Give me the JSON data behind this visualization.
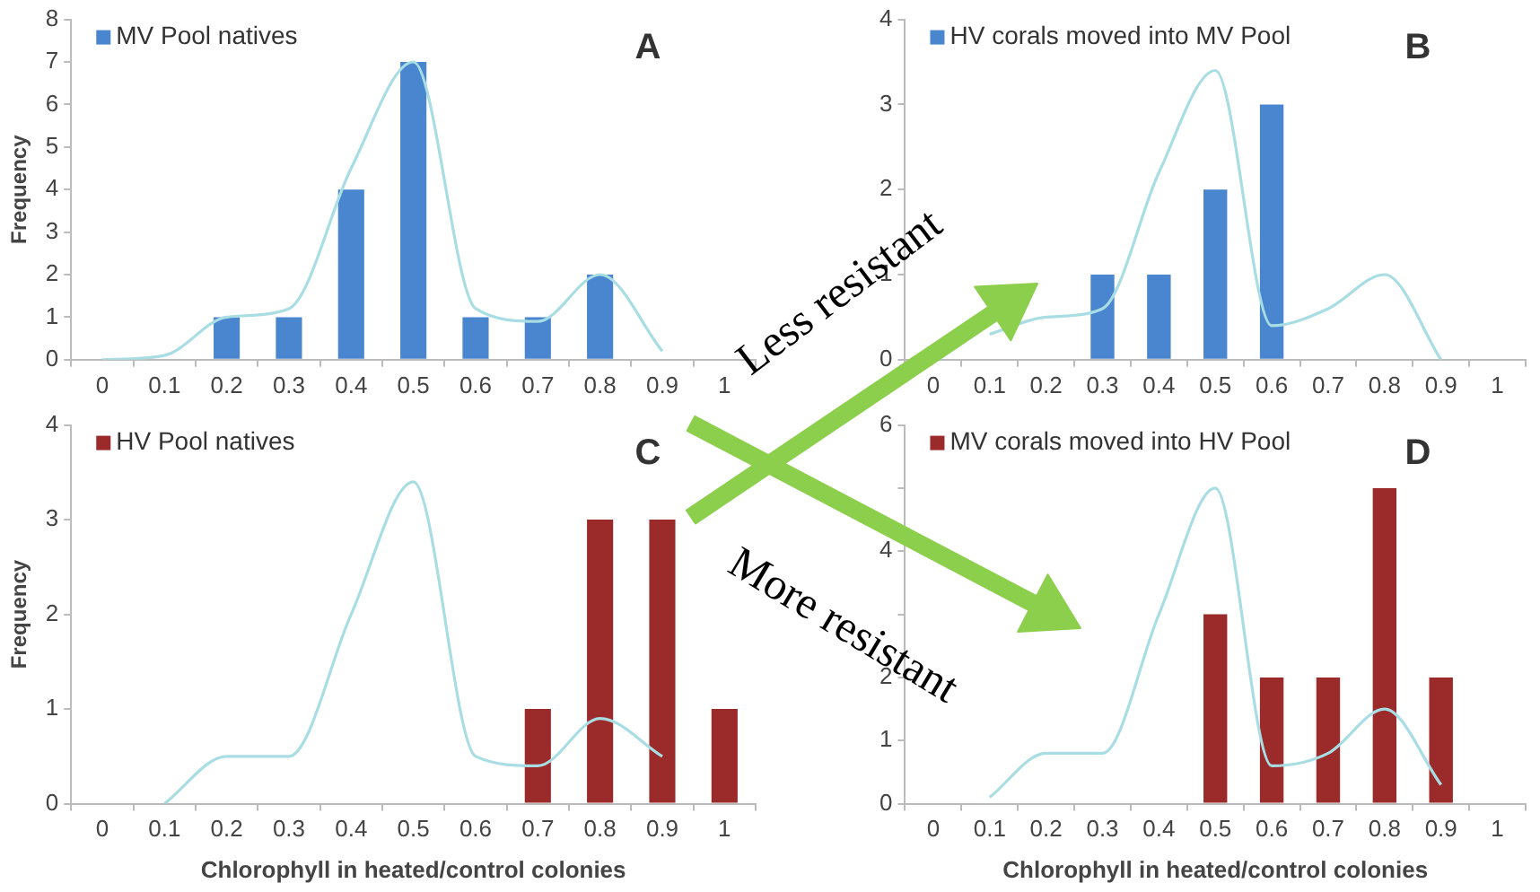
{
  "chart_data": [
    {
      "type": "bar",
      "categories": [
        "0",
        "0.1",
        "0.2",
        "0.3",
        "0.4",
        "0.5",
        "0.6",
        "0.7",
        "0.8",
        "0.9",
        "1"
      ],
      "ylabel": "Frequency",
      "ylim": [
        0,
        8
      ],
      "yticks": [
        0,
        1,
        2,
        3,
        4,
        5,
        6,
        7,
        8
      ],
      "legend": "top left",
      "grid": false,
      "marker": "none",
      "line_style": "solid",
      "annotations": [
        "A"
      ],
      "series": [
        {
          "type": "line",
          "color": "#a8dde3",
          "values": [
            0,
            0.1,
            1,
            1.2,
            4.5,
            7,
            1.2,
            0.9,
            2,
            0.2,
            null
          ]
        },
        {
          "name": "MV Pool natives",
          "color": "#4a86cf",
          "values": [
            null,
            null,
            1,
            1,
            4,
            7,
            1,
            1,
            2,
            null,
            null
          ]
        }
      ]
    },
    {
      "type": "bar",
      "categories": [
        "0",
        "0.1",
        "0.2",
        "0.3",
        "0.4",
        "0.5",
        "0.6",
        "0.7",
        "0.8",
        "0.9",
        "1"
      ],
      "ylim": [
        0,
        4
      ],
      "yticks": [
        0,
        1,
        2,
        3,
        4
      ],
      "legend": "top left",
      "grid": false,
      "marker": "none",
      "line_style": "solid",
      "annotations": [
        "B",
        "Less resistant"
      ],
      "series": [
        {
          "type": "line",
          "color": "#a8dde3",
          "values": [
            null,
            0.3,
            0.5,
            0.6,
            2.2,
            3.4,
            0.4,
            0.6,
            1,
            0,
            null
          ]
        },
        {
          "name": "HV corals moved into MV Pool",
          "color": "#4a86cf",
          "values": [
            null,
            null,
            null,
            1,
            1,
            2,
            3,
            null,
            null,
            null,
            null
          ]
        }
      ]
    },
    {
      "type": "bar",
      "categories": [
        "0",
        "0.1",
        "0.2",
        "0.3",
        "0.4",
        "0.5",
        "0.6",
        "0.7",
        "0.8",
        "0.9",
        "1"
      ],
      "xlabel": "Chlorophyll in heated/control colonies",
      "ylabel": "Frequency",
      "ylim": [
        0,
        4
      ],
      "yticks": [
        0,
        1,
        2,
        3,
        4
      ],
      "legend": "top left",
      "grid": false,
      "marker": "none",
      "line_style": "solid",
      "annotations": [
        "C"
      ],
      "series": [
        {
          "type": "line",
          "color": "#a8dde3",
          "values": [
            null,
            0,
            0.5,
            0.5,
            2,
            3.4,
            0.5,
            0.4,
            0.9,
            0.5,
            null
          ]
        },
        {
          "name": "HV Pool natives",
          "color": "#9b2a2a",
          "values": [
            null,
            null,
            null,
            null,
            null,
            null,
            null,
            1,
            3,
            3,
            1
          ]
        }
      ]
    },
    {
      "type": "bar",
      "categories": [
        "0",
        "0.1",
        "0.2",
        "0.3",
        "0.4",
        "0.5",
        "0.6",
        "0.7",
        "0.8",
        "0.9",
        "1"
      ],
      "xlabel": "Chlorophyll in heated/control colonies",
      "ylim": [
        0,
        6
      ],
      "yticks": [
        0,
        1,
        2,
        {
          "value": 3,
          "label": null
        },
        4,
        {
          "value": 5,
          "label": null
        },
        6
      ],
      "legend": "top left",
      "grid": false,
      "marker": "none",
      "line_style": "solid",
      "annotations": [
        "D",
        "More resistant"
      ],
      "series": [
        {
          "type": "line",
          "color": "#a8dde3",
          "values": [
            null,
            0.1,
            0.8,
            0.8,
            3,
            5,
            0.6,
            0.8,
            1.5,
            0.3,
            null
          ]
        },
        {
          "name": "MV corals moved into HV Pool",
          "color": "#9b2a2a",
          "values": [
            null,
            null,
            null,
            null,
            null,
            3,
            2,
            2,
            5,
            2,
            null
          ]
        }
      ]
    }
  ]
}
